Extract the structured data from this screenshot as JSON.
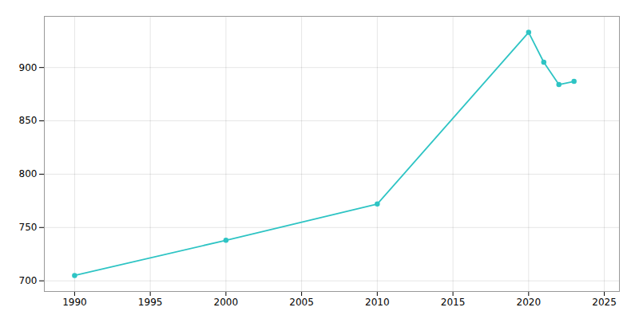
{
  "chart_data": {
    "type": "line",
    "x": [
      1990,
      2000,
      2010,
      2020,
      2021,
      2022,
      2023
    ],
    "values": [
      705,
      738,
      772,
      933,
      905,
      884,
      887
    ],
    "color": "#2ec4c4",
    "marker": "circle",
    "xlim": [
      1988,
      2026
    ],
    "ylim": [
      690,
      948
    ],
    "xticks": [
      1990,
      1995,
      2000,
      2005,
      2010,
      2015,
      2020,
      2025
    ],
    "yticks": [
      700,
      750,
      800,
      850,
      900
    ],
    "grid": true
  }
}
